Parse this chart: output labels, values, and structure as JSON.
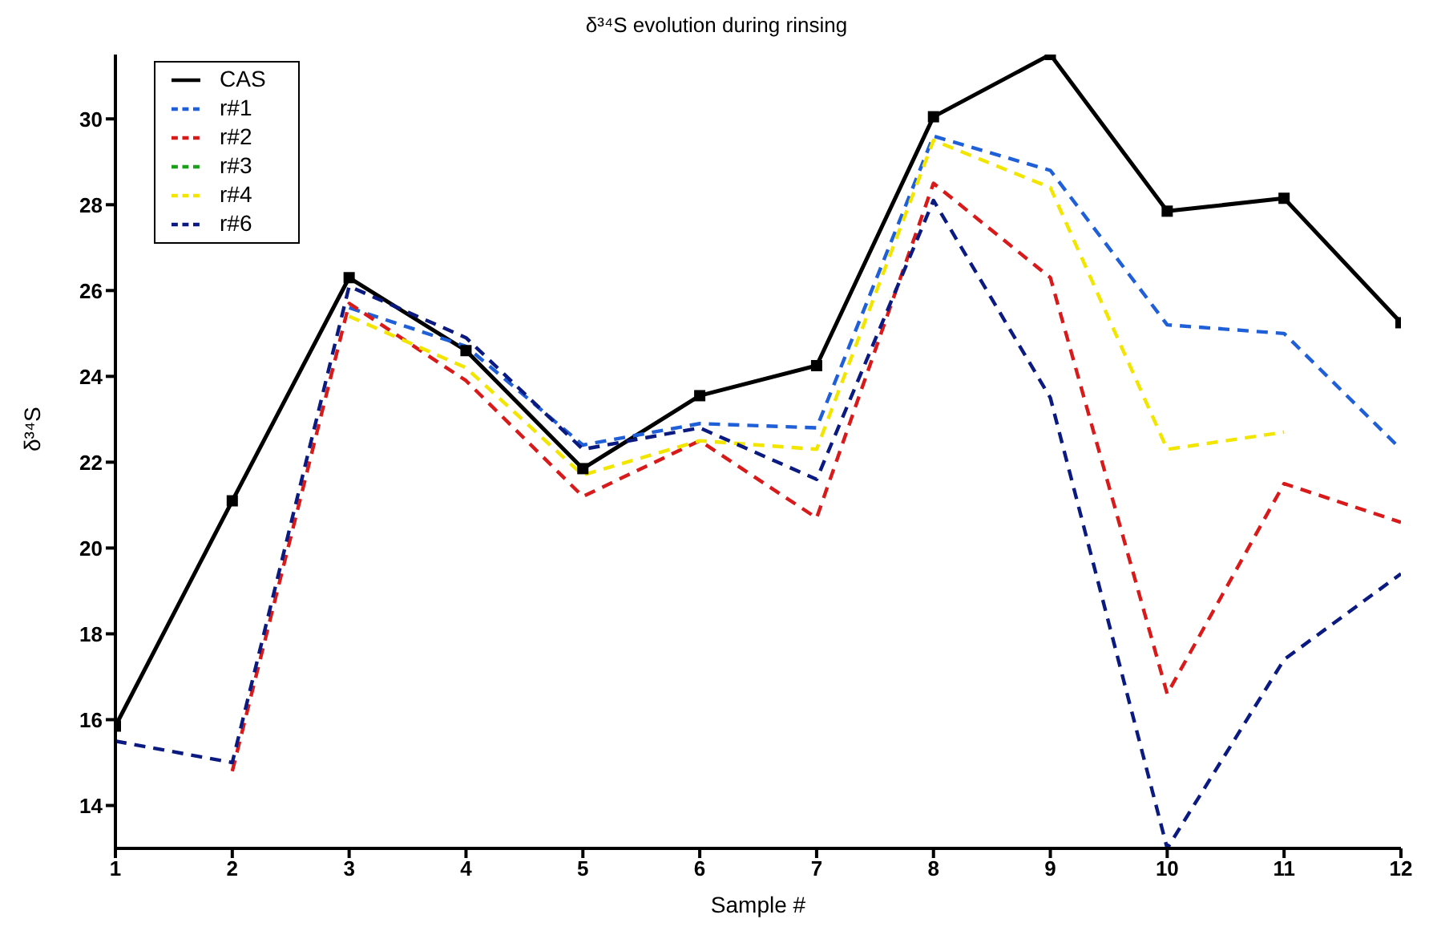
{
  "chart_data": {
    "type": "line",
    "title": "δ³⁴S evolution during rinsing",
    "xlabel": "Sample #",
    "ylabel": "δ³⁴S",
    "x": [
      1,
      2,
      3,
      4,
      5,
      6,
      7,
      8,
      9,
      10,
      11,
      12
    ],
    "xlim": [
      1,
      12
    ],
    "xticks": [
      1,
      2,
      3,
      4,
      5,
      6,
      7,
      8,
      9,
      10,
      11,
      12
    ],
    "ylim": [
      13,
      31.5
    ],
    "yticks": [
      14,
      16,
      18,
      20,
      22,
      24,
      26,
      28,
      30
    ],
    "grid": false,
    "legend": "top left",
    "series": [
      {
        "name": "CAS",
        "color": "#000000",
        "marker": "square",
        "line_style": "solid",
        "values": [
          15.85,
          21.1,
          26.3,
          24.6,
          21.85,
          23.55,
          24.25,
          30.05,
          31.5,
          27.85,
          28.15,
          25.25
        ]
      },
      {
        "name": "r#1",
        "color": "#1f5fd8",
        "marker": "none",
        "line_style": "dashed",
        "values": [
          null,
          null,
          25.6,
          24.7,
          22.4,
          22.9,
          22.8,
          29.6,
          28.8,
          25.2,
          25.0,
          22.3
        ]
      },
      {
        "name": "r#2",
        "color": "#d81a1a",
        "marker": "none",
        "line_style": "dashed",
        "values": [
          null,
          14.8,
          25.7,
          23.9,
          21.2,
          22.5,
          20.7,
          28.5,
          26.3,
          16.6,
          21.5,
          20.6
        ]
      },
      {
        "name": "r#3",
        "color": "#1aa01a",
        "marker": "none",
        "line_style": "dashed",
        "values": [
          null,
          null,
          null,
          null,
          null,
          null,
          null,
          null,
          null,
          null,
          null,
          null
        ]
      },
      {
        "name": "r#4",
        "color": "#f2e600",
        "marker": "none",
        "line_style": "dashed",
        "values": [
          null,
          null,
          25.4,
          24.2,
          21.7,
          22.5,
          22.3,
          29.5,
          28.4,
          22.3,
          22.7,
          null
        ]
      },
      {
        "name": "r#6",
        "color": "#0a1a80",
        "marker": "none",
        "line_style": "dashed",
        "values": [
          15.5,
          15.0,
          26.1,
          24.9,
          22.3,
          22.8,
          21.6,
          28.1,
          23.5,
          13.0,
          17.4,
          19.4
        ]
      }
    ]
  }
}
